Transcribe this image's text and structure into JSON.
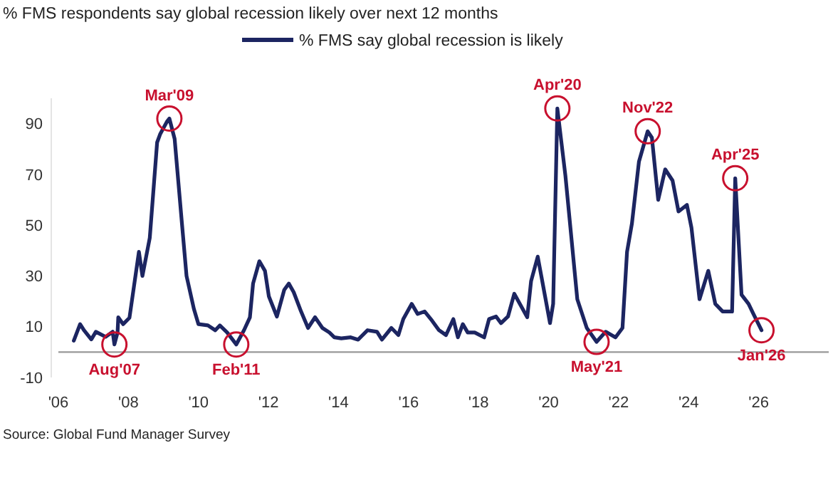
{
  "chart_data": {
    "type": "line",
    "title": "% FMS respondents say global recession likely over next 12 months",
    "x": [
      2006.44,
      2006.62,
      2006.73,
      2006.94,
      2007.07,
      2007.35,
      2007.55,
      2007.6,
      2007.69,
      2007.71,
      2007.85,
      2008.03,
      2008.16,
      2008.3,
      2008.4,
      2008.61,
      2008.82,
      2008.91,
      2009.11,
      2009.17,
      2009.32,
      2009.52,
      2009.66,
      2009.87,
      2010.0,
      2010.27,
      2010.48,
      2010.61,
      2010.82,
      2011.08,
      2011.3,
      2011.47,
      2011.56,
      2011.74,
      2011.9,
      2012.01,
      2012.24,
      2012.45,
      2012.58,
      2012.72,
      2012.93,
      2013.13,
      2013.33,
      2013.54,
      2013.74,
      2013.88,
      2014.08,
      2014.35,
      2014.56,
      2014.83,
      2015.1,
      2015.24,
      2015.51,
      2015.71,
      2015.85,
      2016.09,
      2016.26,
      2016.46,
      2016.67,
      2016.87,
      2017.07,
      2017.28,
      2017.41,
      2017.55,
      2017.69,
      2017.89,
      2018.16,
      2018.3,
      2018.5,
      2018.64,
      2018.84,
      2019.02,
      2019.18,
      2019.39,
      2019.5,
      2019.69,
      2020.04,
      2020.13,
      2020.25,
      2020.48,
      2020.82,
      2021.09,
      2021.37,
      2021.63,
      2021.91,
      2022.11,
      2022.24,
      2022.38,
      2022.58,
      2022.83,
      2022.95,
      2023.13,
      2023.33,
      2023.54,
      2023.71,
      2023.95,
      2024.08,
      2024.31,
      2024.56,
      2024.76,
      2024.97,
      2025.24,
      2025.33,
      2025.51,
      2025.71,
      2025.85,
      2026.08
    ],
    "series": [
      {
        "name": "% FMS say global recession is likely",
        "color": "#1c2561",
        "values": [
          4.5,
          11,
          8.6,
          5,
          8,
          6,
          8,
          3,
          7.7,
          13.7,
          11,
          13.5,
          26,
          39.5,
          30,
          45,
          82.6,
          86,
          91,
          92,
          84,
          52,
          30,
          17,
          11,
          10.5,
          8.6,
          10.5,
          7.7,
          3,
          8.6,
          13.7,
          27,
          35.8,
          32,
          22,
          14,
          24.5,
          27,
          23.6,
          16,
          9.5,
          13.7,
          9.5,
          7.7,
          5.8,
          5.4,
          5.8,
          4.9,
          8.6,
          8,
          4.9,
          9.5,
          6.7,
          13,
          19,
          15,
          16,
          12.4,
          8.6,
          6.7,
          13,
          5.8,
          11,
          7.7,
          7.7,
          5.8,
          13,
          14,
          11.4,
          14,
          23,
          19,
          13.7,
          28,
          37.6,
          11.4,
          19,
          96,
          69.5,
          20.8,
          9.5,
          4,
          8,
          5.8,
          9.5,
          39.5,
          50.7,
          75,
          87,
          84.5,
          60,
          72,
          67.6,
          55.4,
          58,
          49,
          20.8,
          32,
          19,
          16,
          16,
          68.5,
          22.6,
          19,
          15,
          8.6
        ]
      }
    ],
    "xlim": [
      2006,
      2028
    ],
    "xticks": [
      {
        "value": 2006,
        "label": "'06"
      },
      {
        "value": 2008,
        "label": "'08"
      },
      {
        "value": 2010,
        "label": "'10"
      },
      {
        "value": 2012,
        "label": "'12"
      },
      {
        "value": 2014,
        "label": "'14"
      },
      {
        "value": 2016,
        "label": "'16"
      },
      {
        "value": 2018,
        "label": "'18"
      },
      {
        "value": 2020,
        "label": "'20"
      },
      {
        "value": 2022,
        "label": "'22"
      },
      {
        "value": 2024,
        "label": "'24"
      },
      {
        "value": 2026,
        "label": "'26"
      }
    ],
    "ylim": [
      -10,
      100
    ],
    "yticks": [
      -10,
      10,
      30,
      50,
      70,
      90
    ],
    "ref_lines": [
      {
        "axis": "y",
        "value": 0,
        "color": "#999999"
      }
    ],
    "grid": false,
    "legend": "top",
    "marker": "none",
    "line_style": "solid",
    "annotations": [
      {
        "text": "Aug'07",
        "x": 2007.6,
        "y": 3
      },
      {
        "text": "Mar'09",
        "x": 2009.17,
        "y": 92
      },
      {
        "text": "Feb'11",
        "x": 2011.08,
        "y": 3
      },
      {
        "text": "Apr'20",
        "x": 2020.25,
        "y": 96
      },
      {
        "text": "May'21",
        "x": 2021.37,
        "y": 4
      },
      {
        "text": "Nov'22",
        "x": 2022.83,
        "y": 87
      },
      {
        "text": "Apr'25",
        "x": 2025.33,
        "y": 68.5
      },
      {
        "text": "Jan'26",
        "x": 2026.08,
        "y": 8.6
      },
      "Source: Global Fund Manager Survey"
    ]
  }
}
